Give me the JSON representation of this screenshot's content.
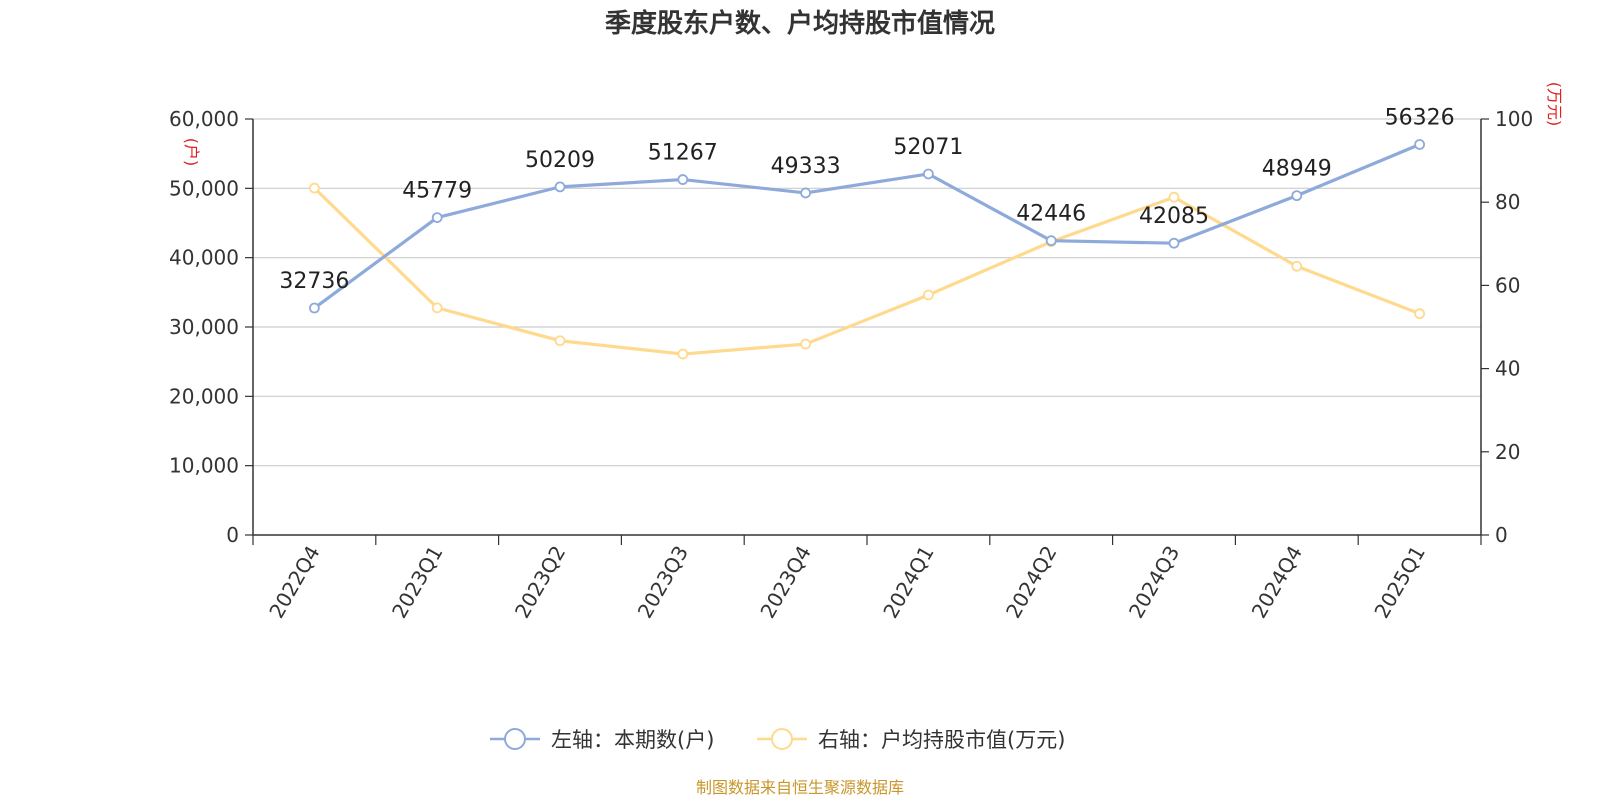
{
  "chart_data": {
    "type": "line",
    "title": "季度股东户数、户均持股市值情况",
    "categories": [
      "2022Q4",
      "2023Q1",
      "2023Q2",
      "2023Q3",
      "2023Q4",
      "2024Q1",
      "2024Q2",
      "2024Q3",
      "2024Q4",
      "2025Q1"
    ],
    "series": [
      {
        "name": "左轴：本期数(户)",
        "axis": "left",
        "color": "#8eaadb",
        "values": [
          32736,
          45779,
          50209,
          51267,
          49333,
          52071,
          42446,
          42085,
          48949,
          56326
        ]
      },
      {
        "name": "右轴：户均持股市值(万元)",
        "axis": "right",
        "color": "#ffd98e",
        "values": [
          83.4,
          54.6,
          46.7,
          43.5,
          45.9,
          57.7,
          70.5,
          81.2,
          64.6,
          53.2
        ]
      }
    ],
    "y_left": {
      "unit": "(户)",
      "ylim": [
        0,
        60000
      ],
      "ticks": [
        "0",
        "10,000",
        "20,000",
        "30,000",
        "40,000",
        "50,000",
        "60,000"
      ]
    },
    "y_right": {
      "unit": "(万元)",
      "ylim": [
        0,
        100
      ],
      "ticks": [
        "0",
        "20",
        "40",
        "60",
        "80",
        "100"
      ]
    },
    "grid": true,
    "legend": "bottom",
    "source": "制图数据来自恒生聚源数据库"
  }
}
